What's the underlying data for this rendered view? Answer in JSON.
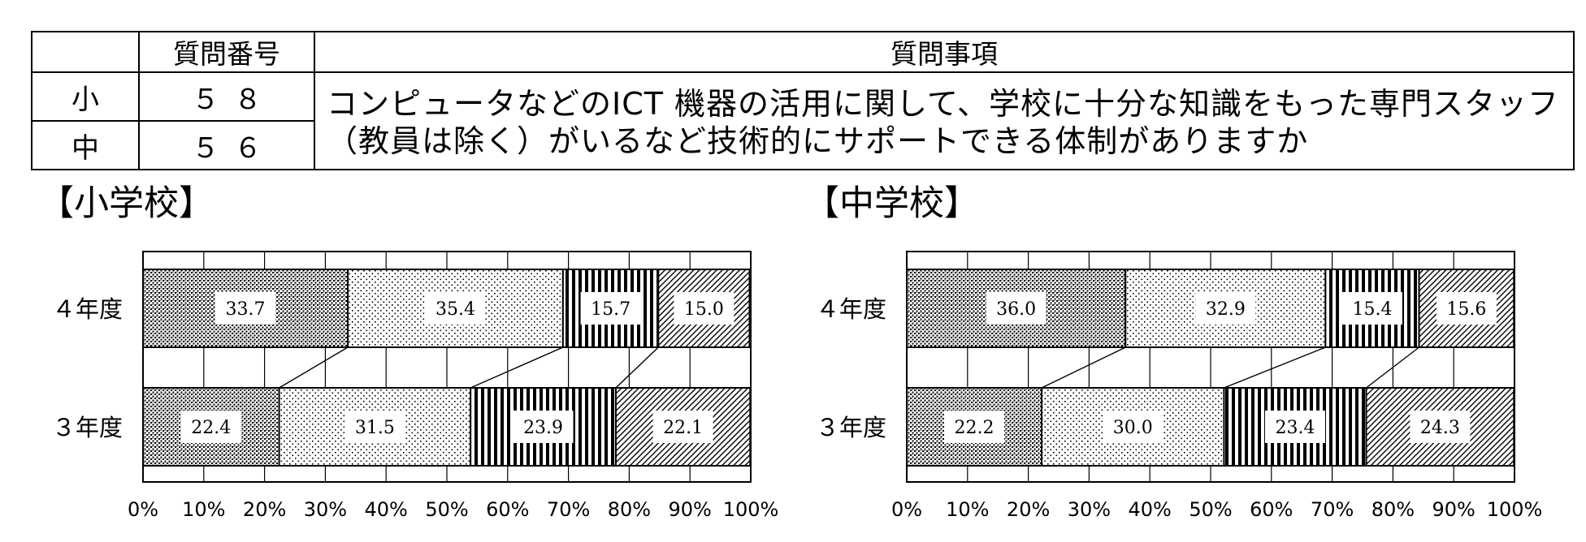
{
  "question_table": {
    "header": {
      "blank": "",
      "number": "質問番号",
      "item": "質問事項"
    },
    "rows": [
      {
        "school": "小",
        "number": "５８"
      },
      {
        "school": "中",
        "number": "５６"
      }
    ],
    "question_text": "コンピュータなどのICT 機器の活用に関して、学校に十分な知識をもった専門スタッフ（教員は除く）がいるなど技術的にサポートできる体制がありますか"
  },
  "pattern_colors": {
    "ink": "#000000",
    "background": "#ffffff",
    "label_box": "#ffffff"
  },
  "chart_data": [
    {
      "type": "bar",
      "stacked": true,
      "orientation": "horizontal",
      "title": "【小学校】",
      "categories": [
        "４年度",
        "３年度"
      ],
      "series": [
        {
          "values": [
            33.7,
            22.4
          ]
        },
        {
          "values": [
            35.4,
            31.5
          ]
        },
        {
          "values": [
            15.7,
            23.9
          ]
        },
        {
          "values": [
            15.0,
            22.1
          ]
        }
      ],
      "xlim": [
        0,
        100
      ],
      "xticks": [
        "0%",
        "10%",
        "20%",
        "30%",
        "40%",
        "50%",
        "60%",
        "70%",
        "80%",
        "90%",
        "100%"
      ],
      "grid": true,
      "series_lines": true
    },
    {
      "type": "bar",
      "stacked": true,
      "orientation": "horizontal",
      "title": "【中学校】",
      "categories": [
        "４年度",
        "３年度"
      ],
      "series": [
        {
          "values": [
            36.0,
            22.2
          ]
        },
        {
          "values": [
            32.9,
            30.0
          ]
        },
        {
          "values": [
            15.4,
            23.4
          ]
        },
        {
          "values": [
            15.6,
            24.3
          ]
        }
      ],
      "xlim": [
        0,
        100
      ],
      "xticks": [
        "0%",
        "10%",
        "20%",
        "30%",
        "40%",
        "50%",
        "60%",
        "70%",
        "80%",
        "90%",
        "100%"
      ],
      "grid": true,
      "series_lines": true
    }
  ]
}
